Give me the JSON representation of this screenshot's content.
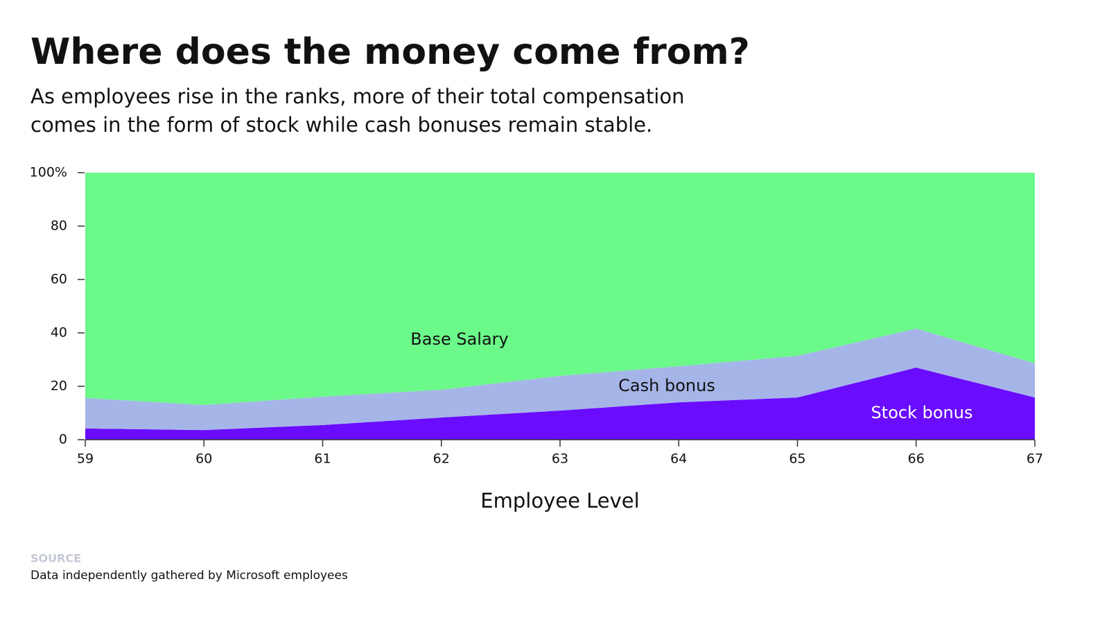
{
  "chart_data": {
    "type": "stacked_area",
    "title": "Where does the money come from?",
    "subtitle": [
      "As employees rise in the ranks, more of their total compensation",
      "comes in the form of stock while cash bonuses remain stable."
    ],
    "x_label": "Employee Level",
    "x": [
      59,
      60,
      61,
      62,
      63,
      64,
      65,
      66,
      67
    ],
    "xlim": [
      59,
      67
    ],
    "xticks": [
      59,
      60,
      61,
      62,
      63,
      64,
      65,
      66,
      67
    ],
    "ylim": [
      0,
      100
    ],
    "yticks": [
      0,
      20,
      40,
      60,
      80,
      {
        "value": 100,
        "label": "100%"
      }
    ],
    "series": [
      {
        "name": "Stock bonus",
        "color": "#6a0dff",
        "values": [
          4.2,
          3.6,
          5.5,
          8.3,
          10.9,
          14,
          15.8,
          27,
          15.8
        ]
      },
      {
        "name": "Cash bonus",
        "color": "#a6b5e8",
        "values": [
          11.4,
          9.4,
          10.6,
          10.4,
          13,
          13.5,
          15.6,
          14.6,
          12.8
        ]
      },
      {
        "name": "Base Salary",
        "color": "#6bf98a",
        "values": [
          84.4,
          87,
          83.9,
          81.3,
          76.1,
          72.5,
          68.6,
          58.4,
          71.4
        ]
      }
    ],
    "source_label": "SOURCE",
    "source": "Data independently gathered by Microsoft employees"
  }
}
